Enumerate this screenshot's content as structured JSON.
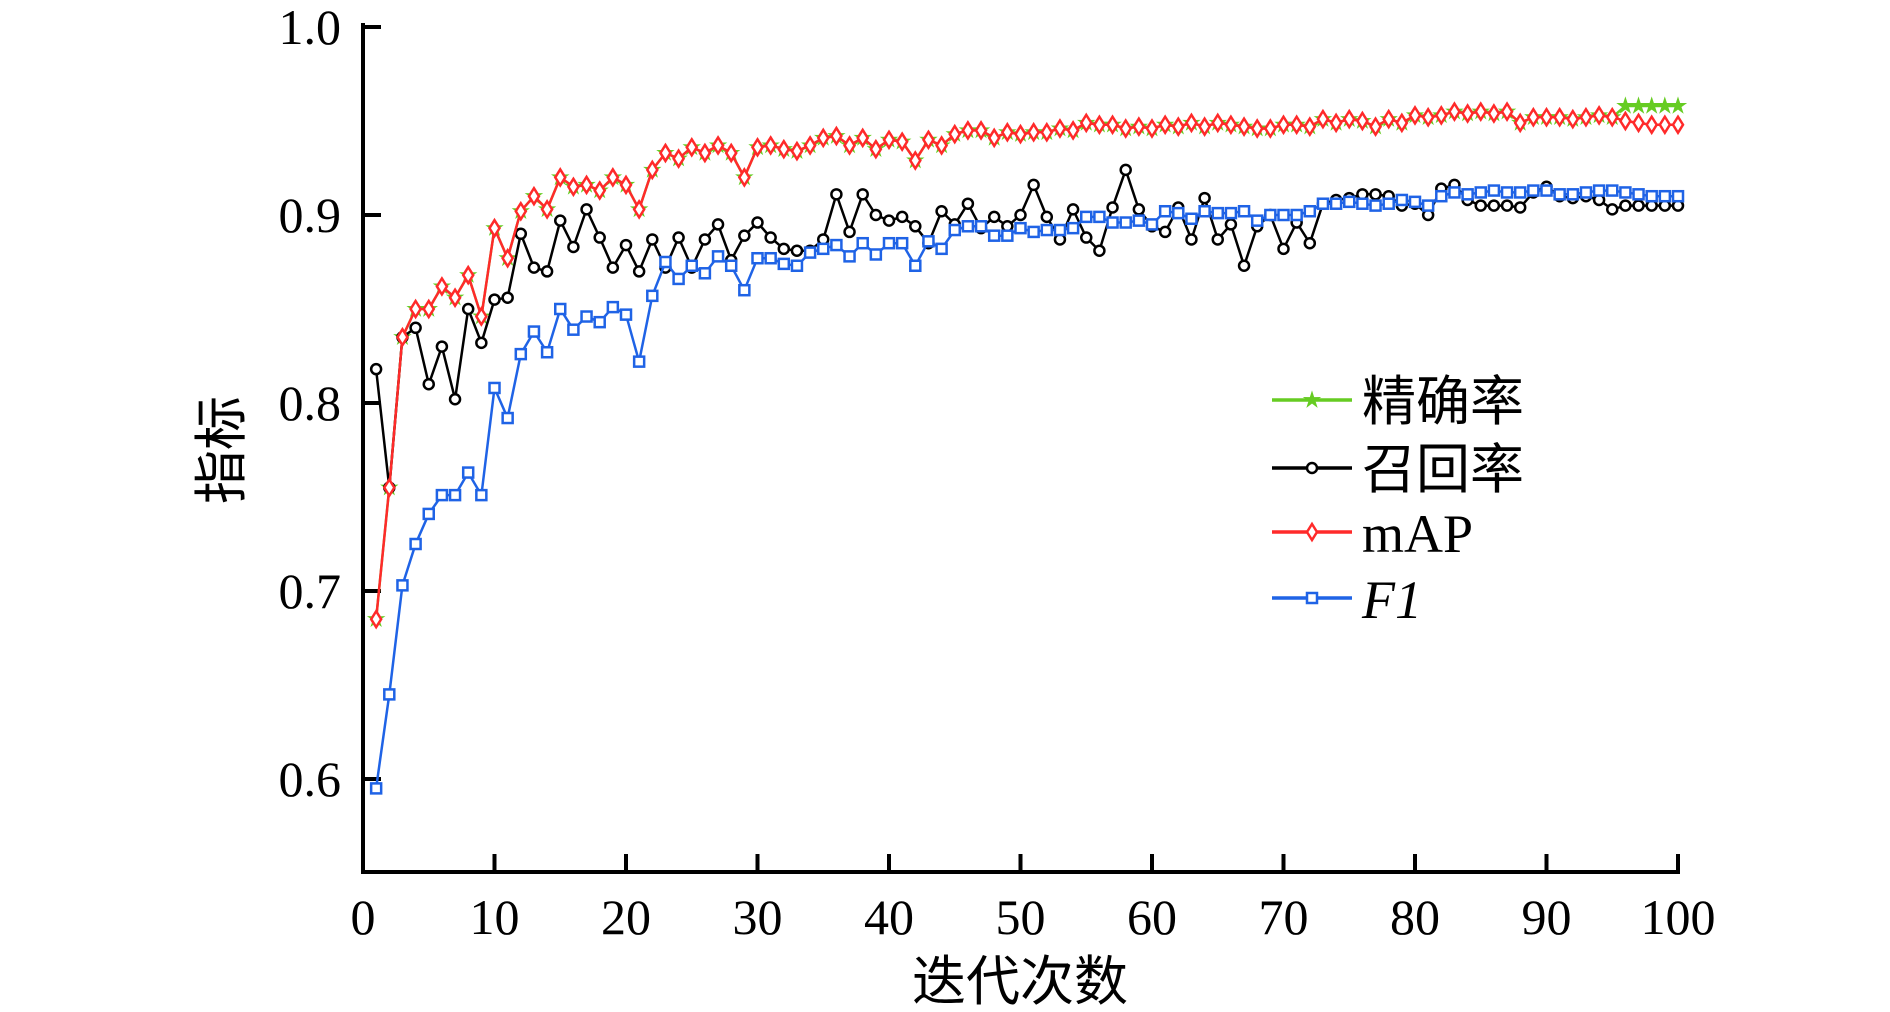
{
  "chart_data": {
    "type": "line",
    "title": "",
    "xlabel": "迭代次数",
    "ylabel": "指标",
    "xlim": [
      0,
      100
    ],
    "ylim": [
      0.55,
      1.0
    ],
    "xticks": [
      "0",
      "10",
      "20",
      "30",
      "40",
      "50",
      "60",
      "70",
      "80",
      "90",
      "100"
    ],
    "yticks": [
      "0.6",
      "0.7",
      "0.8",
      "0.9",
      "1.0"
    ],
    "grid": false,
    "legend_position": "center-right",
    "x_start": 1,
    "series": [
      {
        "name": "精确率",
        "color": "#66cc22",
        "marker": "star",
        "values": [
          0.685,
          0.755,
          0.835,
          0.85,
          0.85,
          0.862,
          0.856,
          0.868,
          0.846,
          0.893,
          0.877,
          0.902,
          0.91,
          0.903,
          0.92,
          0.915,
          0.916,
          0.913,
          0.92,
          0.916,
          0.903,
          0.924,
          0.933,
          0.93,
          0.936,
          0.933,
          0.937,
          0.933,
          0.92,
          0.936,
          0.937,
          0.935,
          0.934,
          0.937,
          0.941,
          0.942,
          0.937,
          0.941,
          0.935,
          0.94,
          0.939,
          0.929,
          0.94,
          0.937,
          0.943,
          0.945,
          0.945,
          0.941,
          0.944,
          0.943,
          0.944,
          0.944,
          0.946,
          0.945,
          0.949,
          0.948,
          0.948,
          0.946,
          0.947,
          0.946,
          0.948,
          0.947,
          0.949,
          0.947,
          0.949,
          0.948,
          0.947,
          0.946,
          0.946,
          0.948,
          0.948,
          0.947,
          0.951,
          0.949,
          0.951,
          0.95,
          0.947,
          0.951,
          0.949,
          0.953,
          0.952,
          0.953,
          0.955,
          0.954,
          0.955,
          0.954,
          0.955,
          0.949,
          0.952,
          0.952,
          0.952,
          0.951,
          0.952,
          0.953,
          0.952,
          0.958,
          0.958,
          0.958,
          0.958,
          0.958
        ]
      },
      {
        "name": "召回率",
        "color": "#000000",
        "marker": "circle",
        "values": [
          0.818,
          0.755,
          0.835,
          0.84,
          0.81,
          0.83,
          0.802,
          0.85,
          0.832,
          0.855,
          0.856,
          0.89,
          0.872,
          0.87,
          0.897,
          0.883,
          0.903,
          0.888,
          0.872,
          0.884,
          0.87,
          0.887,
          0.872,
          0.888,
          0.872,
          0.887,
          0.895,
          0.876,
          0.889,
          0.896,
          0.888,
          0.882,
          0.881,
          0.881,
          0.887,
          0.911,
          0.891,
          0.911,
          0.9,
          0.897,
          0.899,
          0.894,
          0.885,
          0.902,
          0.895,
          0.906,
          0.893,
          0.899,
          0.894,
          0.9,
          0.916,
          0.899,
          0.887,
          0.903,
          0.888,
          0.881,
          0.904,
          0.924,
          0.903,
          0.894,
          0.891,
          0.904,
          0.887,
          0.909,
          0.887,
          0.895,
          0.873,
          0.894,
          0.9,
          0.882,
          0.896,
          0.885,
          0.906,
          0.908,
          0.909,
          0.911,
          0.911,
          0.91,
          0.905,
          0.906,
          0.9,
          0.914,
          0.916,
          0.908,
          0.905,
          0.905,
          0.905,
          0.904,
          0.912,
          0.915,
          0.91,
          0.909,
          0.91,
          0.908,
          0.903,
          0.905,
          0.905,
          0.905,
          0.905,
          0.905
        ]
      },
      {
        "name": "mAP",
        "color": "#ff2a2a",
        "marker": "diamond",
        "values": [
          0.685,
          0.755,
          0.835,
          0.85,
          0.85,
          0.862,
          0.856,
          0.868,
          0.846,
          0.893,
          0.877,
          0.902,
          0.91,
          0.903,
          0.92,
          0.915,
          0.916,
          0.913,
          0.92,
          0.916,
          0.903,
          0.924,
          0.933,
          0.93,
          0.936,
          0.933,
          0.937,
          0.933,
          0.92,
          0.936,
          0.937,
          0.935,
          0.934,
          0.937,
          0.941,
          0.942,
          0.937,
          0.941,
          0.935,
          0.94,
          0.939,
          0.929,
          0.94,
          0.937,
          0.943,
          0.945,
          0.945,
          0.941,
          0.944,
          0.943,
          0.944,
          0.944,
          0.946,
          0.945,
          0.949,
          0.948,
          0.948,
          0.946,
          0.947,
          0.946,
          0.948,
          0.947,
          0.949,
          0.947,
          0.949,
          0.948,
          0.947,
          0.946,
          0.946,
          0.948,
          0.948,
          0.947,
          0.951,
          0.949,
          0.951,
          0.95,
          0.947,
          0.951,
          0.949,
          0.953,
          0.952,
          0.953,
          0.955,
          0.954,
          0.955,
          0.954,
          0.955,
          0.949,
          0.952,
          0.952,
          0.952,
          0.951,
          0.952,
          0.953,
          0.952,
          0.95,
          0.949,
          0.948,
          0.948,
          0.948
        ]
      },
      {
        "name": "F1",
        "color": "#1f63e6",
        "marker": "square",
        "values": [
          0.595,
          0.645,
          0.703,
          0.725,
          0.741,
          0.751,
          0.751,
          0.763,
          0.751,
          0.808,
          0.792,
          0.826,
          0.838,
          0.827,
          0.85,
          0.839,
          0.846,
          0.843,
          0.851,
          0.847,
          0.822,
          0.857,
          0.875,
          0.866,
          0.873,
          0.869,
          0.878,
          0.873,
          0.86,
          0.877,
          0.877,
          0.874,
          0.873,
          0.88,
          0.882,
          0.884,
          0.878,
          0.885,
          0.879,
          0.885,
          0.885,
          0.873,
          0.886,
          0.882,
          0.892,
          0.894,
          0.894,
          0.889,
          0.889,
          0.893,
          0.891,
          0.892,
          0.892,
          0.893,
          0.899,
          0.899,
          0.896,
          0.896,
          0.897,
          0.895,
          0.902,
          0.901,
          0.898,
          0.902,
          0.901,
          0.901,
          0.902,
          0.897,
          0.9,
          0.9,
          0.9,
          0.902,
          0.906,
          0.906,
          0.907,
          0.906,
          0.905,
          0.906,
          0.908,
          0.907,
          0.905,
          0.91,
          0.912,
          0.911,
          0.912,
          0.913,
          0.912,
          0.912,
          0.913,
          0.913,
          0.911,
          0.911,
          0.912,
          0.913,
          0.913,
          0.912,
          0.911,
          0.91,
          0.91,
          0.91
        ]
      }
    ]
  }
}
